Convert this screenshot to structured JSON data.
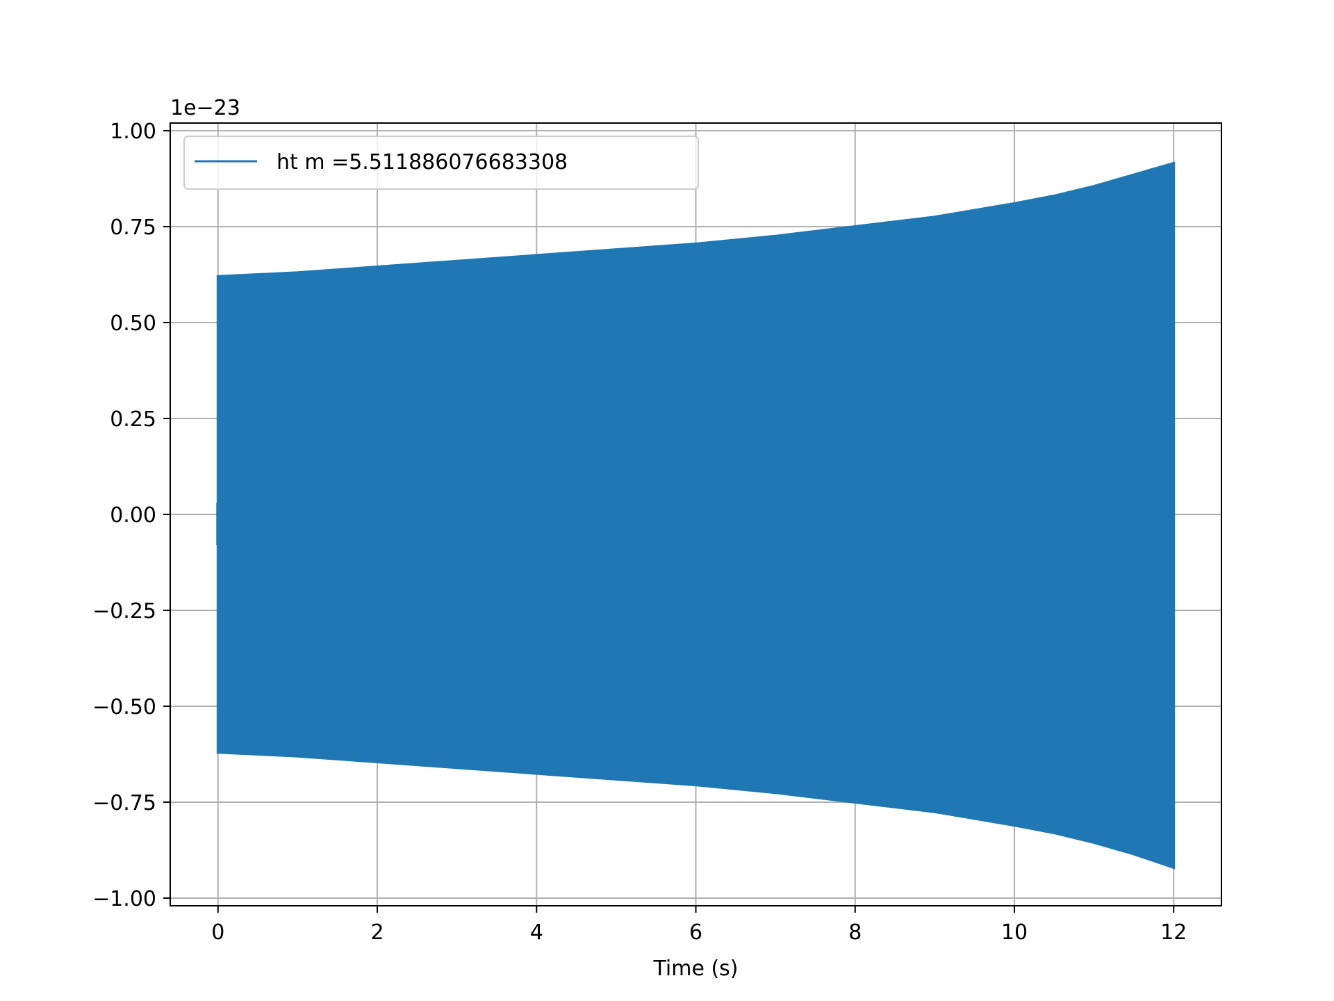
{
  "chart_data": {
    "type": "line",
    "title": "",
    "xlabel": "Time (s)",
    "ylabel": "",
    "y_offset_text": "1e−23",
    "xlim": [
      -0.6,
      12.6
    ],
    "ylim": [
      -1.02,
      1.02
    ],
    "x_ticks": [
      0,
      2,
      4,
      6,
      8,
      10,
      12
    ],
    "x_tick_labels": [
      "0",
      "2",
      "4",
      "6",
      "8",
      "10",
      "12"
    ],
    "y_ticks": [
      1.0,
      0.75,
      0.5,
      0.25,
      0.0,
      -0.25,
      -0.5,
      -0.75,
      -1.0
    ],
    "y_tick_labels": [
      "1.00",
      "0.75",
      "0.50",
      "0.25",
      "0.00",
      "−0.25",
      "−0.50",
      "−0.75",
      "−1.00"
    ],
    "grid": true,
    "legend_position": "upper-left",
    "series": [
      {
        "name": "ht m =5.511886076683308",
        "color": "#1f77b4",
        "x": [
          0,
          1,
          2,
          3,
          4,
          5,
          6,
          7,
          8,
          9,
          10,
          10.5,
          11,
          11.5,
          12
        ],
        "upper_envelope": [
          0.62,
          0.63,
          0.645,
          0.66,
          0.675,
          0.69,
          0.705,
          0.725,
          0.75,
          0.775,
          0.81,
          0.83,
          0.855,
          0.885,
          0.915
        ],
        "lower_envelope": [
          -0.62,
          -0.63,
          -0.645,
          -0.66,
          -0.675,
          -0.69,
          -0.705,
          -0.725,
          -0.75,
          -0.775,
          -0.81,
          -0.83,
          -0.855,
          -0.885,
          -0.92
        ]
      }
    ]
  }
}
